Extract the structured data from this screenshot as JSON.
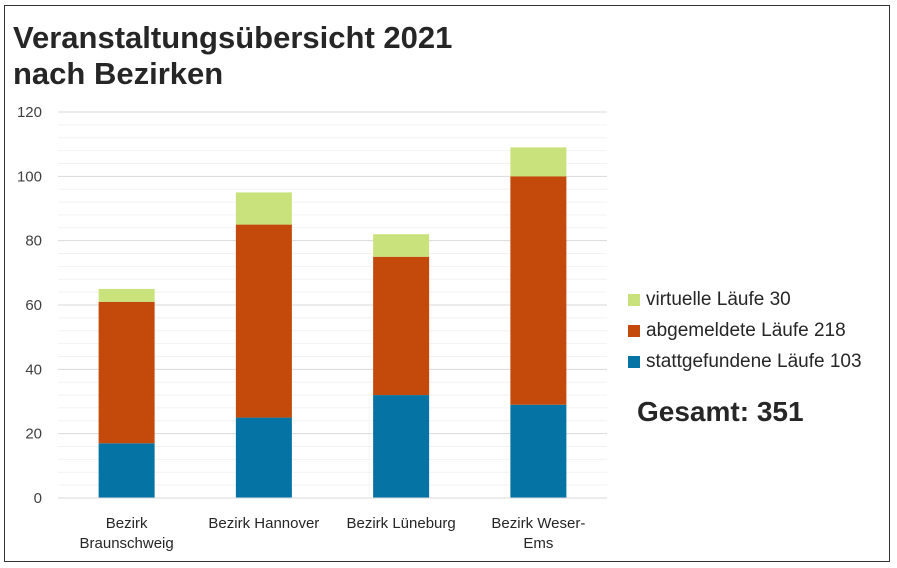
{
  "title_line1": "Veranstaltungsübersicht 2021",
  "title_line2": "nach Bezirken",
  "total_label": "Gesamt: 351",
  "chart_data": {
    "type": "bar",
    "stacked": true,
    "title": "Veranstaltungsübersicht 2021 nach Bezirken",
    "xlabel": "",
    "ylabel": "",
    "ylim": [
      0,
      120
    ],
    "yticks": [
      0,
      20,
      40,
      60,
      80,
      100,
      120
    ],
    "grid": true,
    "legend_position": "right",
    "categories": [
      [
        "Bezirk",
        "Braunschweig"
      ],
      [
        "Bezirk Hannover"
      ],
      [
        "Bezirk Lüneburg"
      ],
      [
        "Bezirk Weser-",
        "Ems"
      ]
    ],
    "series": [
      {
        "name": "stattgefundene Läufe 103",
        "color": "#0673A5",
        "values": [
          17,
          25,
          32,
          29
        ]
      },
      {
        "name": "abgemeldete Läufe 218",
        "color": "#C34A0A",
        "values": [
          44,
          60,
          43,
          71
        ]
      },
      {
        "name": "virtuelle Läufe 30",
        "color": "#C9E27B",
        "values": [
          4,
          10,
          7,
          9
        ]
      }
    ]
  }
}
